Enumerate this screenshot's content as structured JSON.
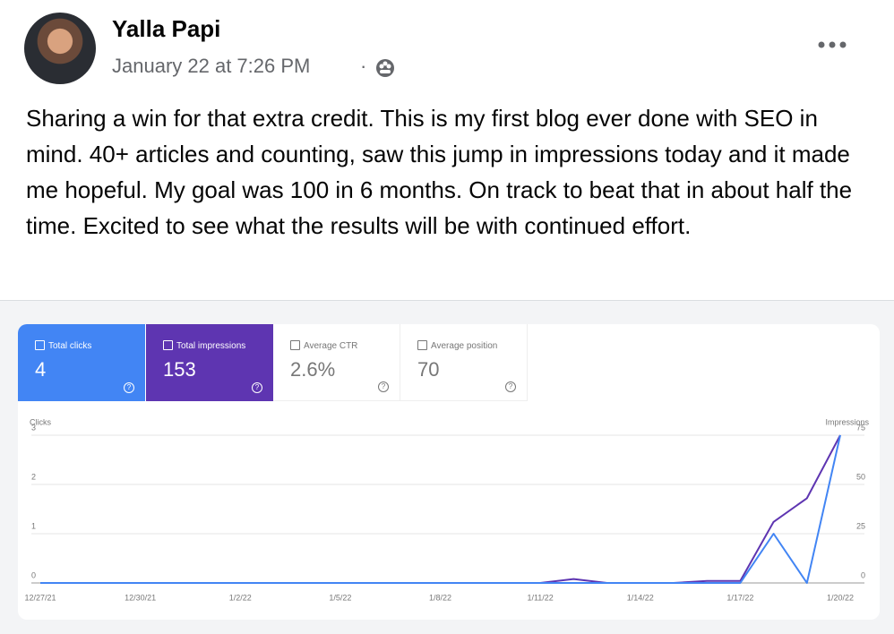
{
  "post": {
    "author": "Yalla Papi",
    "time": "January 22 at 7:26 PM",
    "text": "Sharing a win for that extra credit. This is my first blog ever done with SEO in mind. 40+ articles and counting, saw this jump in impressions today and it made me hopeful. My goal was 100 in 6 months. On track to beat that in about half the time. Excited to see what the results will be with continued effort."
  },
  "cards": [
    {
      "label": "Total clicks",
      "value": "4"
    },
    {
      "label": "Total impressions",
      "value": "153"
    },
    {
      "label": "Average CTR",
      "value": "2.6%"
    },
    {
      "label": "Average position",
      "value": "70"
    }
  ],
  "chart_data": {
    "type": "line",
    "categories": [
      "12/27/21",
      null,
      null,
      "12/30/21",
      null,
      null,
      "1/2/22",
      null,
      null,
      "1/5/22",
      null,
      null,
      "1/8/22",
      null,
      null,
      "1/11/22",
      null,
      null,
      "1/14/22",
      null,
      null,
      "1/17/22",
      null,
      null,
      "1/20/22"
    ],
    "ylabel": "Clicks",
    "y2label": "Impressions",
    "ylim": [
      0,
      3
    ],
    "yticks": [
      0,
      1,
      2,
      3
    ],
    "y2lim": [
      0,
      75
    ],
    "y2ticks": [
      0,
      25,
      50,
      75
    ],
    "grid": true,
    "series": [
      {
        "name": "Total impressions",
        "color": "#5e35b1",
        "axis": "y2",
        "values": [
          0,
          0,
          0,
          0,
          0,
          0,
          0,
          0,
          0,
          0,
          0,
          0,
          0,
          0,
          0,
          0,
          2,
          0,
          0,
          0,
          1,
          1,
          31,
          43,
          75
        ]
      },
      {
        "name": "Total clicks",
        "color": "#4285f4",
        "values": [
          0,
          0,
          0,
          0,
          0,
          0,
          0,
          0,
          0,
          0,
          0,
          0,
          0,
          0,
          0,
          0,
          0,
          0,
          0,
          0,
          0,
          0,
          1,
          0,
          3
        ]
      }
    ]
  }
}
